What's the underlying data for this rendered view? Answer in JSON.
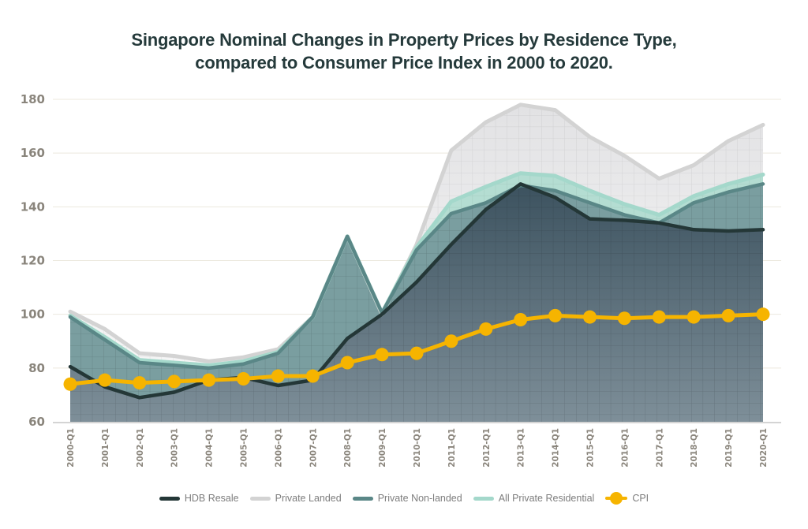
{
  "chart_data": {
    "type": "area",
    "title": "Singapore Nominal Changes in Property Prices by Residence Type, compared to Consumer Price Index in 2000 to 2020.",
    "title_lines": [
      "Singapore Nominal Changes in Property Prices by Residence Type,",
      "compared to Consumer Price Index in 2000 to 2020."
    ],
    "xlabel": "",
    "ylabel": "",
    "ylim": [
      60,
      180
    ],
    "yticks": [
      60,
      80,
      100,
      120,
      140,
      160,
      180
    ],
    "grid": true,
    "legend_position": "bottom-center",
    "x": [
      "2000-Q1",
      "2001-Q1",
      "2002-Q1",
      "2003-Q1",
      "2004-Q1",
      "2005-Q1",
      "2006-Q1",
      "2007-Q1",
      "2008-Q1",
      "2009-Q1",
      "2010-Q1",
      "2011-Q1",
      "2012-Q1",
      "2013-Q1",
      "2014-Q1",
      "2015-Q1",
      "2016-Q1",
      "2017-Q1",
      "2018-Q1",
      "2019-Q1",
      "2020-Q1"
    ],
    "series": [
      {
        "name": "Private Landed",
        "kind": "area",
        "color": "#d3d3d3",
        "fill": "#ececec",
        "values": [
          101,
          94.5,
          85.5,
          84.5,
          82.5,
          84,
          87,
          99,
          129,
          100,
          126,
          161,
          171.5,
          178,
          176,
          166,
          159,
          150.5,
          155.5,
          164.5,
          170.5
        ]
      },
      {
        "name": "All Private Residential",
        "kind": "area",
        "color": "#a4d8cb",
        "fill": "#bfe3da",
        "values": [
          99.5,
          91.5,
          83,
          82,
          81,
          82.5,
          86,
          99,
          129,
          100.5,
          125,
          142,
          147.5,
          152.5,
          151.5,
          146,
          141,
          137,
          144,
          148.5,
          152
        ]
      },
      {
        "name": "Private Non-landed",
        "kind": "area",
        "color": "#5a8787",
        "fill": "#7fa3a4",
        "values": [
          99,
          90.5,
          82,
          81,
          80,
          81.5,
          85.5,
          99,
          129,
          100.5,
          124,
          137.5,
          141.5,
          148,
          146,
          141.5,
          137,
          134,
          141.5,
          145.5,
          148.5
        ]
      },
      {
        "name": "HDB Resale",
        "kind": "area",
        "color": "#243737",
        "fill": "#465c68",
        "values": [
          80.5,
          73,
          69,
          71,
          75.5,
          76.5,
          73.5,
          75.5,
          91,
          100,
          112,
          126,
          139,
          148.5,
          143.5,
          135.5,
          135,
          134,
          131.5,
          131,
          131.5
        ]
      },
      {
        "name": "CPI",
        "kind": "line-marker",
        "color": "#f6b400",
        "values": [
          74,
          75.5,
          74.5,
          75,
          75.5,
          76,
          77,
          77,
          82,
          85,
          85.5,
          90,
          94.5,
          98,
          99.5,
          99,
          98.5,
          99,
          99,
          99.5,
          100
        ]
      }
    ],
    "legend": [
      {
        "name": "HDB Resale",
        "color": "#243737",
        "marker": "line"
      },
      {
        "name": "Private Landed",
        "color": "#d3d3d3",
        "marker": "line"
      },
      {
        "name": "Private Non-landed",
        "color": "#5a8787",
        "marker": "line"
      },
      {
        "name": "All Private Residential",
        "color": "#a4d8cb",
        "marker": "line"
      },
      {
        "name": "CPI",
        "color": "#f6b400",
        "marker": "line-dot"
      }
    ]
  }
}
